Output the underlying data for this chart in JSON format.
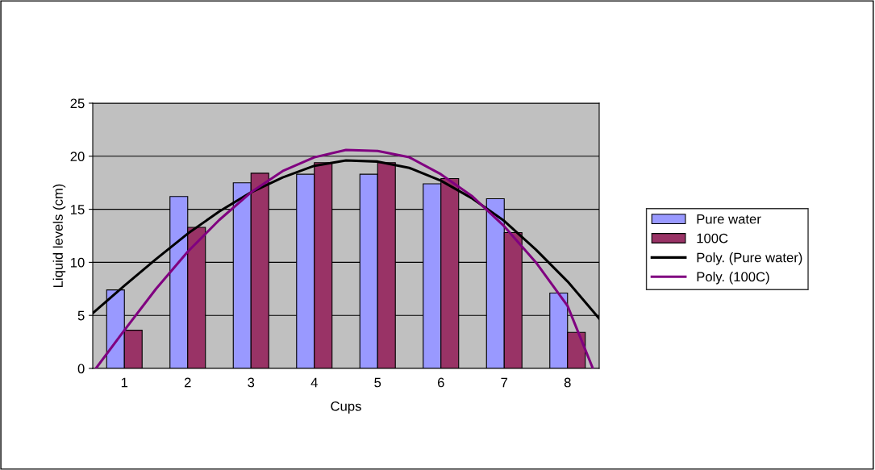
{
  "chart_data": {
    "type": "bar",
    "xlabel": "Cups",
    "ylabel": "Liquid levels (cm)",
    "x": [
      1,
      2,
      3,
      4,
      5,
      6,
      7,
      8
    ],
    "xlim": [
      0.5,
      8.5
    ],
    "xticks": [
      1,
      2,
      3,
      4,
      5,
      6,
      7,
      8
    ],
    "ylim": [
      0,
      25
    ],
    "yticks": [
      0,
      5,
      10,
      15,
      20,
      25
    ],
    "grid": "y",
    "legend": "right",
    "series": [
      {
        "name": "Pure water",
        "color": "#9999ff",
        "values": [
          7.4,
          16.2,
          17.5,
          18.3,
          18.3,
          17.4,
          16.0,
          7.1
        ]
      },
      {
        "name": "100C",
        "color": "#993366",
        "values": [
          3.6,
          13.3,
          18.4,
          19.4,
          19.4,
          17.9,
          12.8,
          3.4
        ]
      },
      {
        "name": "Poly. (Pure water)",
        "type": "line",
        "color": "#000000",
        "x": [
          0.5,
          1,
          1.5,
          2,
          2.5,
          3,
          3.5,
          4,
          4.5,
          5,
          5.5,
          6,
          6.5,
          7,
          7.5,
          8,
          8.5
        ],
        "values": [
          5.2,
          7.8,
          10.3,
          12.7,
          14.8,
          16.6,
          18.0,
          19.1,
          19.6,
          19.5,
          18.9,
          17.7,
          16.0,
          13.9,
          11.2,
          8.2,
          4.7
        ]
      },
      {
        "name": "Poly. (100C)",
        "type": "line",
        "color": "#800080",
        "x": [
          0.55,
          1,
          1.5,
          2,
          2.5,
          3,
          3.5,
          4,
          4.5,
          5,
          5.5,
          6,
          6.5,
          7,
          7.5,
          8,
          8.4
        ],
        "values": [
          0,
          3.6,
          7.5,
          11.0,
          14.0,
          16.6,
          18.6,
          19.9,
          20.6,
          20.5,
          19.9,
          18.3,
          16.2,
          13.4,
          10.0,
          5.9,
          0
        ]
      }
    ]
  }
}
